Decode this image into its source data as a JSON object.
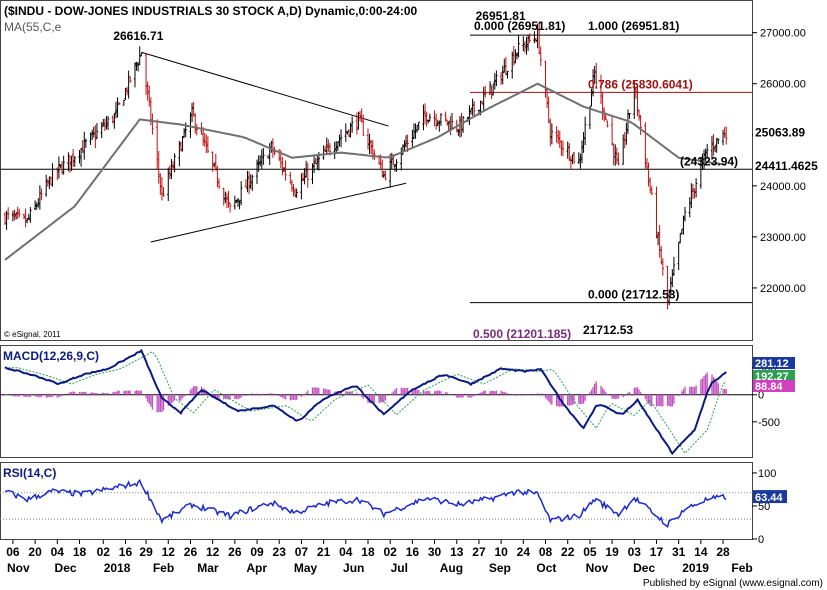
{
  "header": {
    "title": "($INDU - DOW-JONES INDUSTRIALS 30 STOCK A,D) Dynamic,0:00-24:00",
    "ma_label": "MA(55,C,e",
    "copyright": "© eSignal, 2011",
    "publisher": "Published by eSignal (www.esignal.com)"
  },
  "chart_data": [
    {
      "type": "candlestick",
      "ylim": [
        21000,
        27600
      ],
      "yticks": [
        "27000.00",
        "26000.00",
        "25000.00",
        "24000.00",
        "23000.00",
        "22000.00"
      ],
      "yticks_values": [
        27000,
        26000,
        25000,
        24000,
        23000,
        22000
      ],
      "ohlc_series": "daily OHLC, Nov 2017 - Jan 2019",
      "keypoints": [
        [
          "2017-11-01",
          23400
        ],
        [
          "2017-11-15",
          23300
        ],
        [
          "2017-12-01",
          24200
        ],
        [
          "2017-12-20",
          24750
        ],
        [
          "2018-01-10",
          25400
        ],
        [
          "2018-01-26",
          26616
        ],
        [
          "2018-02-08",
          23800
        ],
        [
          "2018-02-27",
          25400
        ],
        [
          "2018-03-23",
          23530
        ],
        [
          "2018-04-18",
          24750
        ],
        [
          "2018-05-03",
          23930
        ],
        [
          "2018-05-25",
          24750
        ],
        [
          "2018-06-12",
          25300
        ],
        [
          "2018-06-28",
          24200
        ],
        [
          "2018-07-25",
          25400
        ],
        [
          "2018-08-15",
          25150
        ],
        [
          "2018-09-05",
          25950
        ],
        [
          "2018-09-20",
          26650
        ],
        [
          "2018-10-03",
          26951
        ],
        [
          "2018-10-11",
          25050
        ],
        [
          "2018-10-29",
          24450
        ],
        [
          "2018-11-08",
          26200
        ],
        [
          "2018-11-23",
          24300
        ],
        [
          "2018-12-03",
          25950
        ],
        [
          "2018-12-24",
          21712
        ],
        [
          "2019-01-04",
          23450
        ],
        [
          "2019-01-18",
          24700
        ],
        [
          "2019-01-30",
          25063
        ]
      ],
      "moving_average": {
        "name": "MA(55,C,e",
        "keypoints": [
          [
            "2017-11-01",
            22550
          ],
          [
            "2017-12-15",
            23600
          ],
          [
            "2018-01-25",
            25300
          ],
          [
            "2018-02-20",
            25200
          ],
          [
            "2018-04-01",
            24950
          ],
          [
            "2018-05-01",
            24550
          ],
          [
            "2018-06-01",
            24650
          ],
          [
            "2018-07-01",
            24550
          ],
          [
            "2018-08-01",
            24950
          ],
          [
            "2018-09-01",
            25500
          ],
          [
            "2018-10-03",
            26000
          ],
          [
            "2018-11-01",
            25550
          ],
          [
            "2018-12-01",
            25250
          ],
          [
            "2018-12-31",
            24550
          ],
          [
            "2019-01-30",
            24411
          ]
        ]
      },
      "horizontal_lines": [
        {
          "value": 26951.81,
          "label_left": "0.000 (26951.81)",
          "label_right": "1.000 (26951.81)",
          "color": "#000000"
        },
        {
          "value": 25830.6041,
          "label": "0.786 (25830.6041)",
          "color": "#a01010"
        },
        {
          "value": 24323.94,
          "label": "(24323.94)",
          "color": "#000000"
        },
        {
          "value": 21712.53,
          "label": "0.000 (21712.53)",
          "color": "#000000"
        }
      ],
      "trendlines": [
        {
          "from": [
            "2018-01-26",
            26616
          ],
          "to": [
            "2018-07-01",
            25170
          ]
        },
        {
          "from": [
            "2018-02-01",
            22900
          ],
          "to": [
            "2018-07-12",
            24050
          ]
        }
      ],
      "annotations": [
        {
          "text": "26616.71",
          "date": "2018-01-26",
          "value": 26616.71
        },
        {
          "text": "26951.81",
          "date": "2018-10-03",
          "value": 26951.81
        },
        {
          "text": "21712.53",
          "date": "2018-12-24",
          "value": 21712.53
        },
        {
          "text": "0.500 (21201.185)",
          "color": "#7a2a7a"
        }
      ],
      "price_tags": [
        {
          "text": "25063.89",
          "value": 25063.89
        },
        {
          "text": "24411.4625",
          "value": 24411.4625
        }
      ]
    },
    {
      "type": "macd",
      "title": "MACD(12,26,9,C)",
      "ylim": [
        -1150,
        900
      ],
      "yticks": [
        "500",
        "0",
        "-500"
      ],
      "yticks_values": [
        500,
        0,
        -500
      ],
      "macd_keypoints": [
        [
          "2017-11-01",
          500
        ],
        [
          "2017-11-20",
          350
        ],
        [
          "2017-12-05",
          200
        ],
        [
          "2017-12-20",
          370
        ],
        [
          "2018-01-05",
          480
        ],
        [
          "2018-01-26",
          810
        ],
        [
          "2018-02-08",
          -70
        ],
        [
          "2018-02-20",
          -330
        ],
        [
          "2018-03-05",
          90
        ],
        [
          "2018-03-28",
          -300
        ],
        [
          "2018-04-20",
          -200
        ],
        [
          "2018-05-05",
          -500
        ],
        [
          "2018-05-20",
          -90
        ],
        [
          "2018-06-10",
          180
        ],
        [
          "2018-06-28",
          -370
        ],
        [
          "2018-07-15",
          80
        ],
        [
          "2018-08-05",
          380
        ],
        [
          "2018-08-22",
          200
        ],
        [
          "2018-09-10",
          480
        ],
        [
          "2018-09-25",
          430
        ],
        [
          "2018-10-05",
          470
        ],
        [
          "2018-10-20",
          -200
        ],
        [
          "2018-11-01",
          -620
        ],
        [
          "2018-11-10",
          -150
        ],
        [
          "2018-11-25",
          -380
        ],
        [
          "2018-12-05",
          -100
        ],
        [
          "2018-12-27",
          -1080
        ],
        [
          "2019-01-10",
          -650
        ],
        [
          "2019-01-20",
          200
        ],
        [
          "2019-01-30",
          410
        ]
      ],
      "signal_lag_days": 8,
      "histogram_scale": 0.6,
      "tags": [
        {
          "text": "281.12",
          "color": "#1a3aa0",
          "value": 281.12
        },
        {
          "text": "192.27",
          "color": "#2aa050",
          "value": 192.27
        },
        {
          "text": "88.84",
          "color": "#d040c0",
          "value": 88.84
        }
      ]
    },
    {
      "type": "rsi",
      "title": "RSI(14,C)",
      "ylim": [
        0,
        115
      ],
      "yticks": [
        "100",
        "50",
        "0"
      ],
      "yticks_values": [
        100,
        50,
        0
      ],
      "levels": [
        30,
        70
      ],
      "keypoints": [
        [
          "2017-11-01",
          72
        ],
        [
          "2017-11-15",
          60
        ],
        [
          "2017-12-01",
          72
        ],
        [
          "2017-12-20",
          68
        ],
        [
          "2018-01-10",
          78
        ],
        [
          "2018-01-26",
          86
        ],
        [
          "2018-02-08",
          28
        ],
        [
          "2018-02-27",
          52
        ],
        [
          "2018-03-23",
          35
        ],
        [
          "2018-04-18",
          55
        ],
        [
          "2018-05-03",
          40
        ],
        [
          "2018-05-25",
          55
        ],
        [
          "2018-06-12",
          60
        ],
        [
          "2018-06-28",
          38
        ],
        [
          "2018-07-25",
          62
        ],
        [
          "2018-08-15",
          52
        ],
        [
          "2018-09-05",
          62
        ],
        [
          "2018-09-20",
          72
        ],
        [
          "2018-10-03",
          68
        ],
        [
          "2018-10-11",
          28
        ],
        [
          "2018-10-29",
          35
        ],
        [
          "2018-11-08",
          60
        ],
        [
          "2018-11-23",
          38
        ],
        [
          "2018-12-03",
          62
        ],
        [
          "2018-12-24",
          22
        ],
        [
          "2019-01-04",
          45
        ],
        [
          "2019-01-18",
          60
        ],
        [
          "2019-01-30",
          63.44
        ]
      ],
      "tags": [
        {
          "text": "63.44",
          "color": "#1a3aa0",
          "value": 63.44
        }
      ]
    }
  ],
  "xaxis": {
    "day_ticks": [
      [
        "2017-11-06",
        "06"
      ],
      [
        "2017-11-20",
        "20"
      ],
      [
        "2017-12-04",
        "04"
      ],
      [
        "2017-12-18",
        "18"
      ],
      [
        "2018-01-02",
        "02"
      ],
      [
        "2018-01-16",
        "16"
      ],
      [
        "2018-01-29",
        "29"
      ],
      [
        "2018-02-12",
        "12"
      ],
      [
        "2018-02-26",
        "26"
      ],
      [
        "2018-03-12",
        "12"
      ],
      [
        "2018-03-26",
        "26"
      ],
      [
        "2018-04-09",
        "09"
      ],
      [
        "2018-04-23",
        "23"
      ],
      [
        "2018-05-07",
        "07"
      ],
      [
        "2018-05-21",
        "21"
      ],
      [
        "2018-06-04",
        "04"
      ],
      [
        "2018-06-18",
        "18"
      ],
      [
        "2018-07-02",
        "02"
      ],
      [
        "2018-07-16",
        "16"
      ],
      [
        "2018-07-30",
        "30"
      ],
      [
        "2018-08-13",
        "13"
      ],
      [
        "2018-08-27",
        "27"
      ],
      [
        "2018-09-10",
        "10"
      ],
      [
        "2018-09-24",
        "24"
      ],
      [
        "2018-10-08",
        "08"
      ],
      [
        "2018-10-22",
        "22"
      ],
      [
        "2018-11-05",
        "05"
      ],
      [
        "2018-11-19",
        "19"
      ],
      [
        "2018-12-03",
        "03"
      ],
      [
        "2018-12-17",
        "17"
      ],
      [
        "2018-12-31",
        "31"
      ],
      [
        "2019-01-14",
        "14"
      ],
      [
        "2019-01-28",
        "28"
      ]
    ],
    "month_ticks": [
      [
        "2017-11-01",
        "Nov"
      ],
      [
        "2017-12-01",
        "Dec"
      ],
      [
        "2018-01-01",
        "2018"
      ],
      [
        "2018-02-01",
        "Feb"
      ],
      [
        "2018-03-01",
        "Mar"
      ],
      [
        "2018-04-01",
        "Apr"
      ],
      [
        "2018-05-01",
        "May"
      ],
      [
        "2018-06-01",
        "Jun"
      ],
      [
        "2018-07-01",
        "Jul"
      ],
      [
        "2018-08-01",
        "Aug"
      ],
      [
        "2018-09-01",
        "Sep"
      ],
      [
        "2018-10-01",
        "Oct"
      ],
      [
        "2018-11-01",
        "Nov"
      ],
      [
        "2018-12-01",
        "Dec"
      ],
      [
        "2019-01-01",
        "2019"
      ],
      [
        "2019-02-01",
        "Feb"
      ]
    ]
  },
  "colors": {
    "candle": "#000000",
    "moving_average": "#707070",
    "macd_line": "#0a1a80",
    "signal_line": "#2aa050",
    "histogram": "#c050c0",
    "rsi_line": "#1a2ad0",
    "fib_red": "#a01010",
    "fib_purple": "#7a2a7a"
  }
}
